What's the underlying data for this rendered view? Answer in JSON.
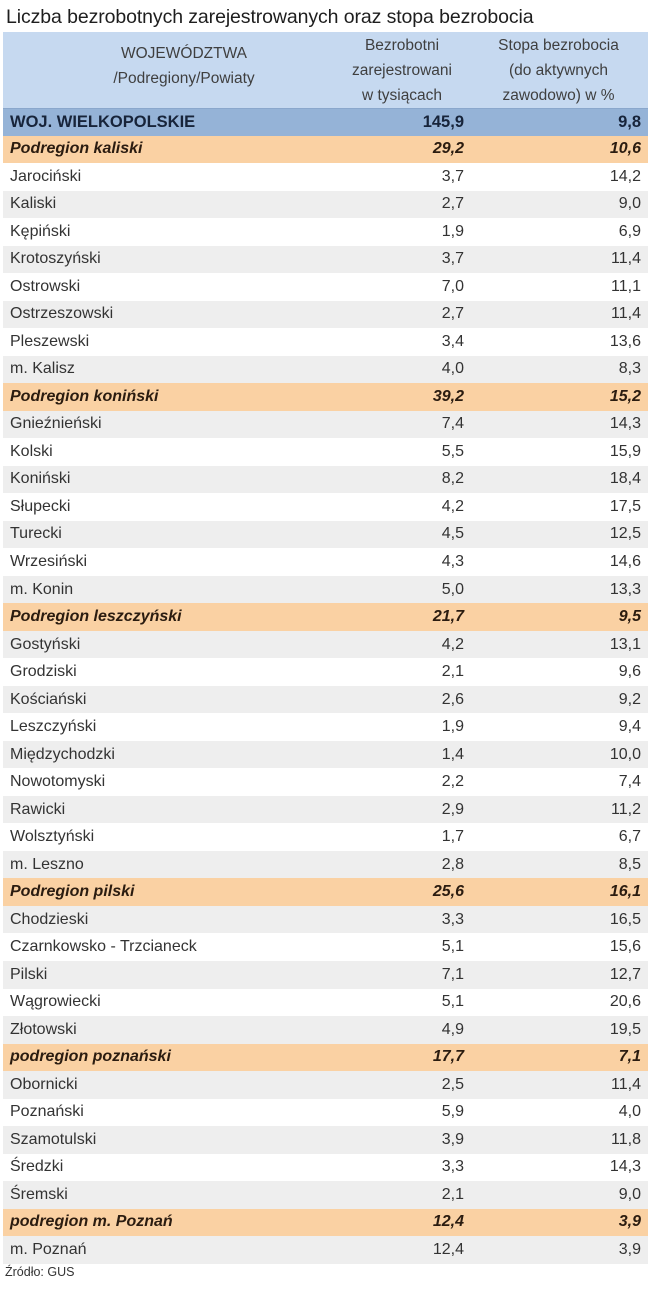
{
  "title": "Liczba bezrobotnych zarejestrowanych oraz stopa bezrobocia",
  "table": {
    "columns": [
      {
        "line1": "WOJEWÓDZTWA",
        "line2": "/Podregiony/Powiaty"
      },
      {
        "line1": "Bezrobotni",
        "line2": "zarejestrowani",
        "line3": "w tysiącach"
      },
      {
        "line1": "Stopa bezrobocia",
        "line2": "(do aktywnych",
        "line3": "zawodowo) w %"
      }
    ],
    "colors": {
      "header_bg": "#c6d9f0",
      "state_bg": "#95b3d7",
      "subregion_bg": "#fad1a3",
      "alt_row_bg": "#eeeeee"
    },
    "rows": [
      {
        "type": "state",
        "name": "WOJ. WIELKOPOLSKIE",
        "unemployed": "145,9",
        "rate": "9,8"
      },
      {
        "type": "sub",
        "name": "Podregion kaliski",
        "unemployed": "29,2",
        "rate": "10,6"
      },
      {
        "type": "powiat",
        "name": "Jarociński",
        "unemployed": "3,7",
        "rate": "14,2"
      },
      {
        "type": "powiat",
        "name": "Kaliski",
        "unemployed": "2,7",
        "rate": "9,0"
      },
      {
        "type": "powiat",
        "name": "Kępiński",
        "unemployed": "1,9",
        "rate": "6,9"
      },
      {
        "type": "powiat",
        "name": "Krotoszyński",
        "unemployed": "3,7",
        "rate": "11,4"
      },
      {
        "type": "powiat",
        "name": "Ostrowski",
        "unemployed": "7,0",
        "rate": "11,1"
      },
      {
        "type": "powiat",
        "name": "Ostrzeszowski",
        "unemployed": "2,7",
        "rate": "11,4"
      },
      {
        "type": "powiat",
        "name": "Pleszewski",
        "unemployed": "3,4",
        "rate": "13,6"
      },
      {
        "type": "powiat",
        "name": "m. Kalisz",
        "unemployed": "4,0",
        "rate": "8,3"
      },
      {
        "type": "sub",
        "name": "Podregion koniński",
        "unemployed": "39,2",
        "rate": "15,2"
      },
      {
        "type": "powiat",
        "name": "Gnieźnieński",
        "unemployed": "7,4",
        "rate": "14,3"
      },
      {
        "type": "powiat",
        "name": "Kolski",
        "unemployed": "5,5",
        "rate": "15,9"
      },
      {
        "type": "powiat",
        "name": "Koniński",
        "unemployed": "8,2",
        "rate": "18,4"
      },
      {
        "type": "powiat",
        "name": "Słupecki",
        "unemployed": "4,2",
        "rate": "17,5"
      },
      {
        "type": "powiat",
        "name": "Turecki",
        "unemployed": "4,5",
        "rate": "12,5"
      },
      {
        "type": "powiat",
        "name": "Wrzesiński",
        "unemployed": "4,3",
        "rate": "14,6"
      },
      {
        "type": "powiat",
        "name": "m. Konin",
        "unemployed": "5,0",
        "rate": "13,3"
      },
      {
        "type": "sub",
        "name": "Podregion leszczyński",
        "unemployed": "21,7",
        "rate": "9,5"
      },
      {
        "type": "powiat",
        "name": "Gostyński",
        "unemployed": "4,2",
        "rate": "13,1"
      },
      {
        "type": "powiat",
        "name": "Grodziski",
        "unemployed": "2,1",
        "rate": "9,6"
      },
      {
        "type": "powiat",
        "name": "Kościański",
        "unemployed": "2,6",
        "rate": "9,2"
      },
      {
        "type": "powiat",
        "name": "Leszczyński",
        "unemployed": "1,9",
        "rate": "9,4"
      },
      {
        "type": "powiat",
        "name": "Międzychodzki",
        "unemployed": "1,4",
        "rate": "10,0"
      },
      {
        "type": "powiat",
        "name": "Nowotomyski",
        "unemployed": "2,2",
        "rate": "7,4"
      },
      {
        "type": "powiat",
        "name": "Rawicki",
        "unemployed": "2,9",
        "rate": "11,2"
      },
      {
        "type": "powiat",
        "name": "Wolsztyński",
        "unemployed": "1,7",
        "rate": "6,7"
      },
      {
        "type": "powiat",
        "name": "m. Leszno",
        "unemployed": "2,8",
        "rate": "8,5"
      },
      {
        "type": "sub",
        "name": "Podregion pilski",
        "unemployed": "25,6",
        "rate": "16,1"
      },
      {
        "type": "powiat",
        "name": "Chodzieski",
        "unemployed": "3,3",
        "rate": "16,5"
      },
      {
        "type": "powiat",
        "name": "Czarnkowsko - Trzcianeck",
        "unemployed": "5,1",
        "rate": "15,6"
      },
      {
        "type": "powiat",
        "name": "Pilski",
        "unemployed": "7,1",
        "rate": "12,7"
      },
      {
        "type": "powiat",
        "name": "Wągrowiecki",
        "unemployed": "5,1",
        "rate": "20,6"
      },
      {
        "type": "powiat",
        "name": "Złotowski",
        "unemployed": "4,9",
        "rate": "19,5"
      },
      {
        "type": "sub",
        "name": "podregion poznański",
        "unemployed": "17,7",
        "rate": "7,1"
      },
      {
        "type": "powiat",
        "name": "Obornicki",
        "unemployed": "2,5",
        "rate": "11,4"
      },
      {
        "type": "powiat",
        "name": "Poznański",
        "unemployed": "5,9",
        "rate": "4,0"
      },
      {
        "type": "powiat",
        "name": "Szamotulski",
        "unemployed": "3,9",
        "rate": "11,8"
      },
      {
        "type": "powiat",
        "name": "Średzki",
        "unemployed": "3,3",
        "rate": "14,3"
      },
      {
        "type": "powiat",
        "name": "Śremski",
        "unemployed": "2,1",
        "rate": "9,0"
      },
      {
        "type": "sub",
        "name": "podregion m. Poznań",
        "unemployed": "12,4",
        "rate": "3,9"
      },
      {
        "type": "powiat",
        "name": "m. Poznań",
        "unemployed": "12,4",
        "rate": "3,9"
      }
    ]
  },
  "footer": {
    "source": "Źródło: GUS"
  }
}
